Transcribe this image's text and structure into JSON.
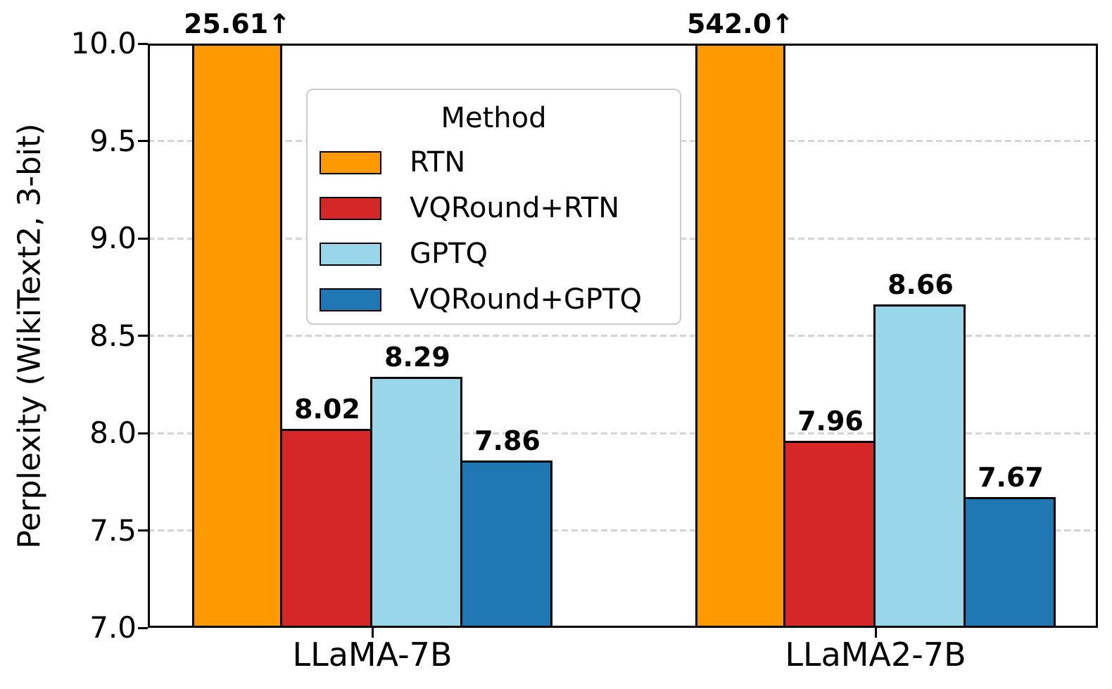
{
  "chart_data": {
    "type": "bar",
    "title": "",
    "xlabel": "",
    "ylabel": "Perplexity (WikiText2, 3-bit)",
    "categories": [
      "LLaMA-7B",
      "LLaMA2-7B"
    ],
    "series": [
      {
        "name": "RTN",
        "color": "#FF9900",
        "values": [
          25.61,
          542.0
        ],
        "value_labels": [
          "25.61↑",
          "542.0↑"
        ]
      },
      {
        "name": "VQRound+RTN",
        "color": "#D62728",
        "values": [
          8.02,
          7.96
        ],
        "value_labels": [
          "8.02",
          "7.96"
        ]
      },
      {
        "name": "GPTQ",
        "color": "#99D6EA",
        "values": [
          8.29,
          8.66
        ],
        "value_labels": [
          "8.29",
          "8.66"
        ]
      },
      {
        "name": "VQRound+GPTQ",
        "color": "#1F77B4",
        "values": [
          7.86,
          7.67
        ],
        "value_labels": [
          "7.86",
          "7.67"
        ]
      }
    ],
    "ylim": [
      7.0,
      10.0
    ],
    "yticks": [
      7.0,
      7.5,
      8.0,
      8.5,
      9.0,
      9.5,
      10.0
    ],
    "ytick_labels": [
      "7.0",
      "7.5",
      "8.0",
      "8.5",
      "9.0",
      "9.5",
      "10.0"
    ],
    "legend_title": "Method",
    "legend_position": "upper-left-inside",
    "grid": "horizontal-dashed",
    "clipped_note": "RTN bars exceed y-axis maximum and are clipped at 10.0",
    "colors": {
      "grid": "#D5D5D5",
      "bar_edge": "#000000",
      "spine": "#000000",
      "legend_border": "#CCCCCC",
      "background": "#FFFFFF",
      "text": "#000000"
    }
  }
}
